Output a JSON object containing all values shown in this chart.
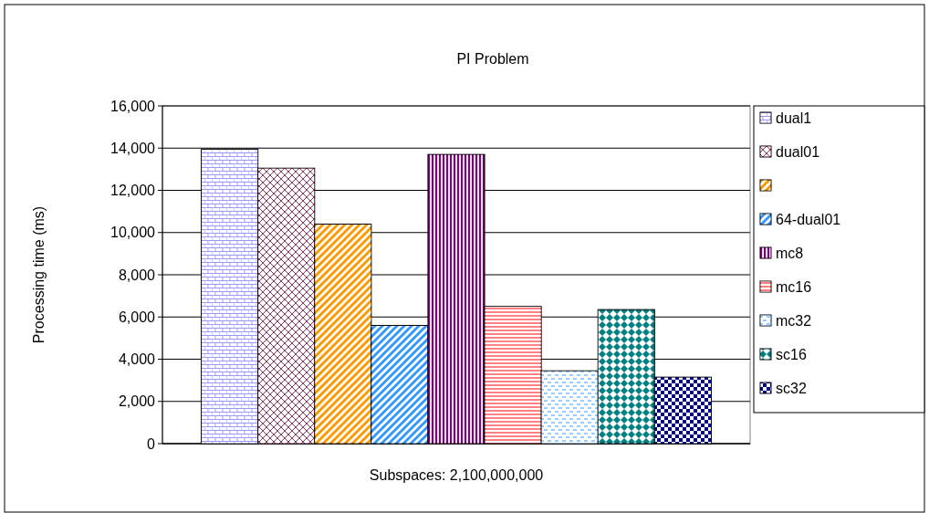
{
  "chart_data": {
    "type": "bar",
    "title": "PI Problem",
    "xlabel": "Subspaces: 2,100,000,000",
    "ylabel": "Processing time (ms)",
    "categories": [
      null
    ],
    "series": [
      {
        "name": "dual1",
        "color": "#9999ff",
        "values": [
          13950
        ]
      },
      {
        "name": "dual01",
        "color": "#993366",
        "values": [
          13050
        ]
      },
      {
        "color": "#ff9900",
        "values": [
          10400
        ]
      },
      {
        "name": "64-dual01",
        "color": "#3399ff",
        "values": [
          5600
        ]
      },
      {
        "name": "mc8",
        "color": "#800080",
        "values": [
          13700
        ]
      },
      {
        "name": "mc16",
        "color": "#ff8080",
        "values": [
          6500
        ]
      },
      {
        "name": "mc32",
        "color": "#3399ff",
        "values": [
          3450
        ]
      },
      {
        "name": "sc16",
        "color": "#008080",
        "values": [
          6350
        ]
      },
      {
        "name": "sc32",
        "color": "#000080",
        "values": [
          3150
        ]
      }
    ],
    "ylim": [
      0,
      16000
    ],
    "yticks": [
      0,
      {
        "value": 2000,
        "label": "2,000"
      },
      {
        "value": 4000,
        "label": "4,000"
      },
      {
        "value": 6000,
        "label": "6,000"
      },
      {
        "value": 8000,
        "label": "8,000"
      },
      {
        "value": 10000,
        "label": "10,000"
      },
      {
        "value": 12000,
        "label": "12,000"
      },
      {
        "value": 14000,
        "label": "14,000"
      },
      {
        "value": 16000,
        "label": "16,000"
      }
    ],
    "grid": "y",
    "legend": "right"
  }
}
